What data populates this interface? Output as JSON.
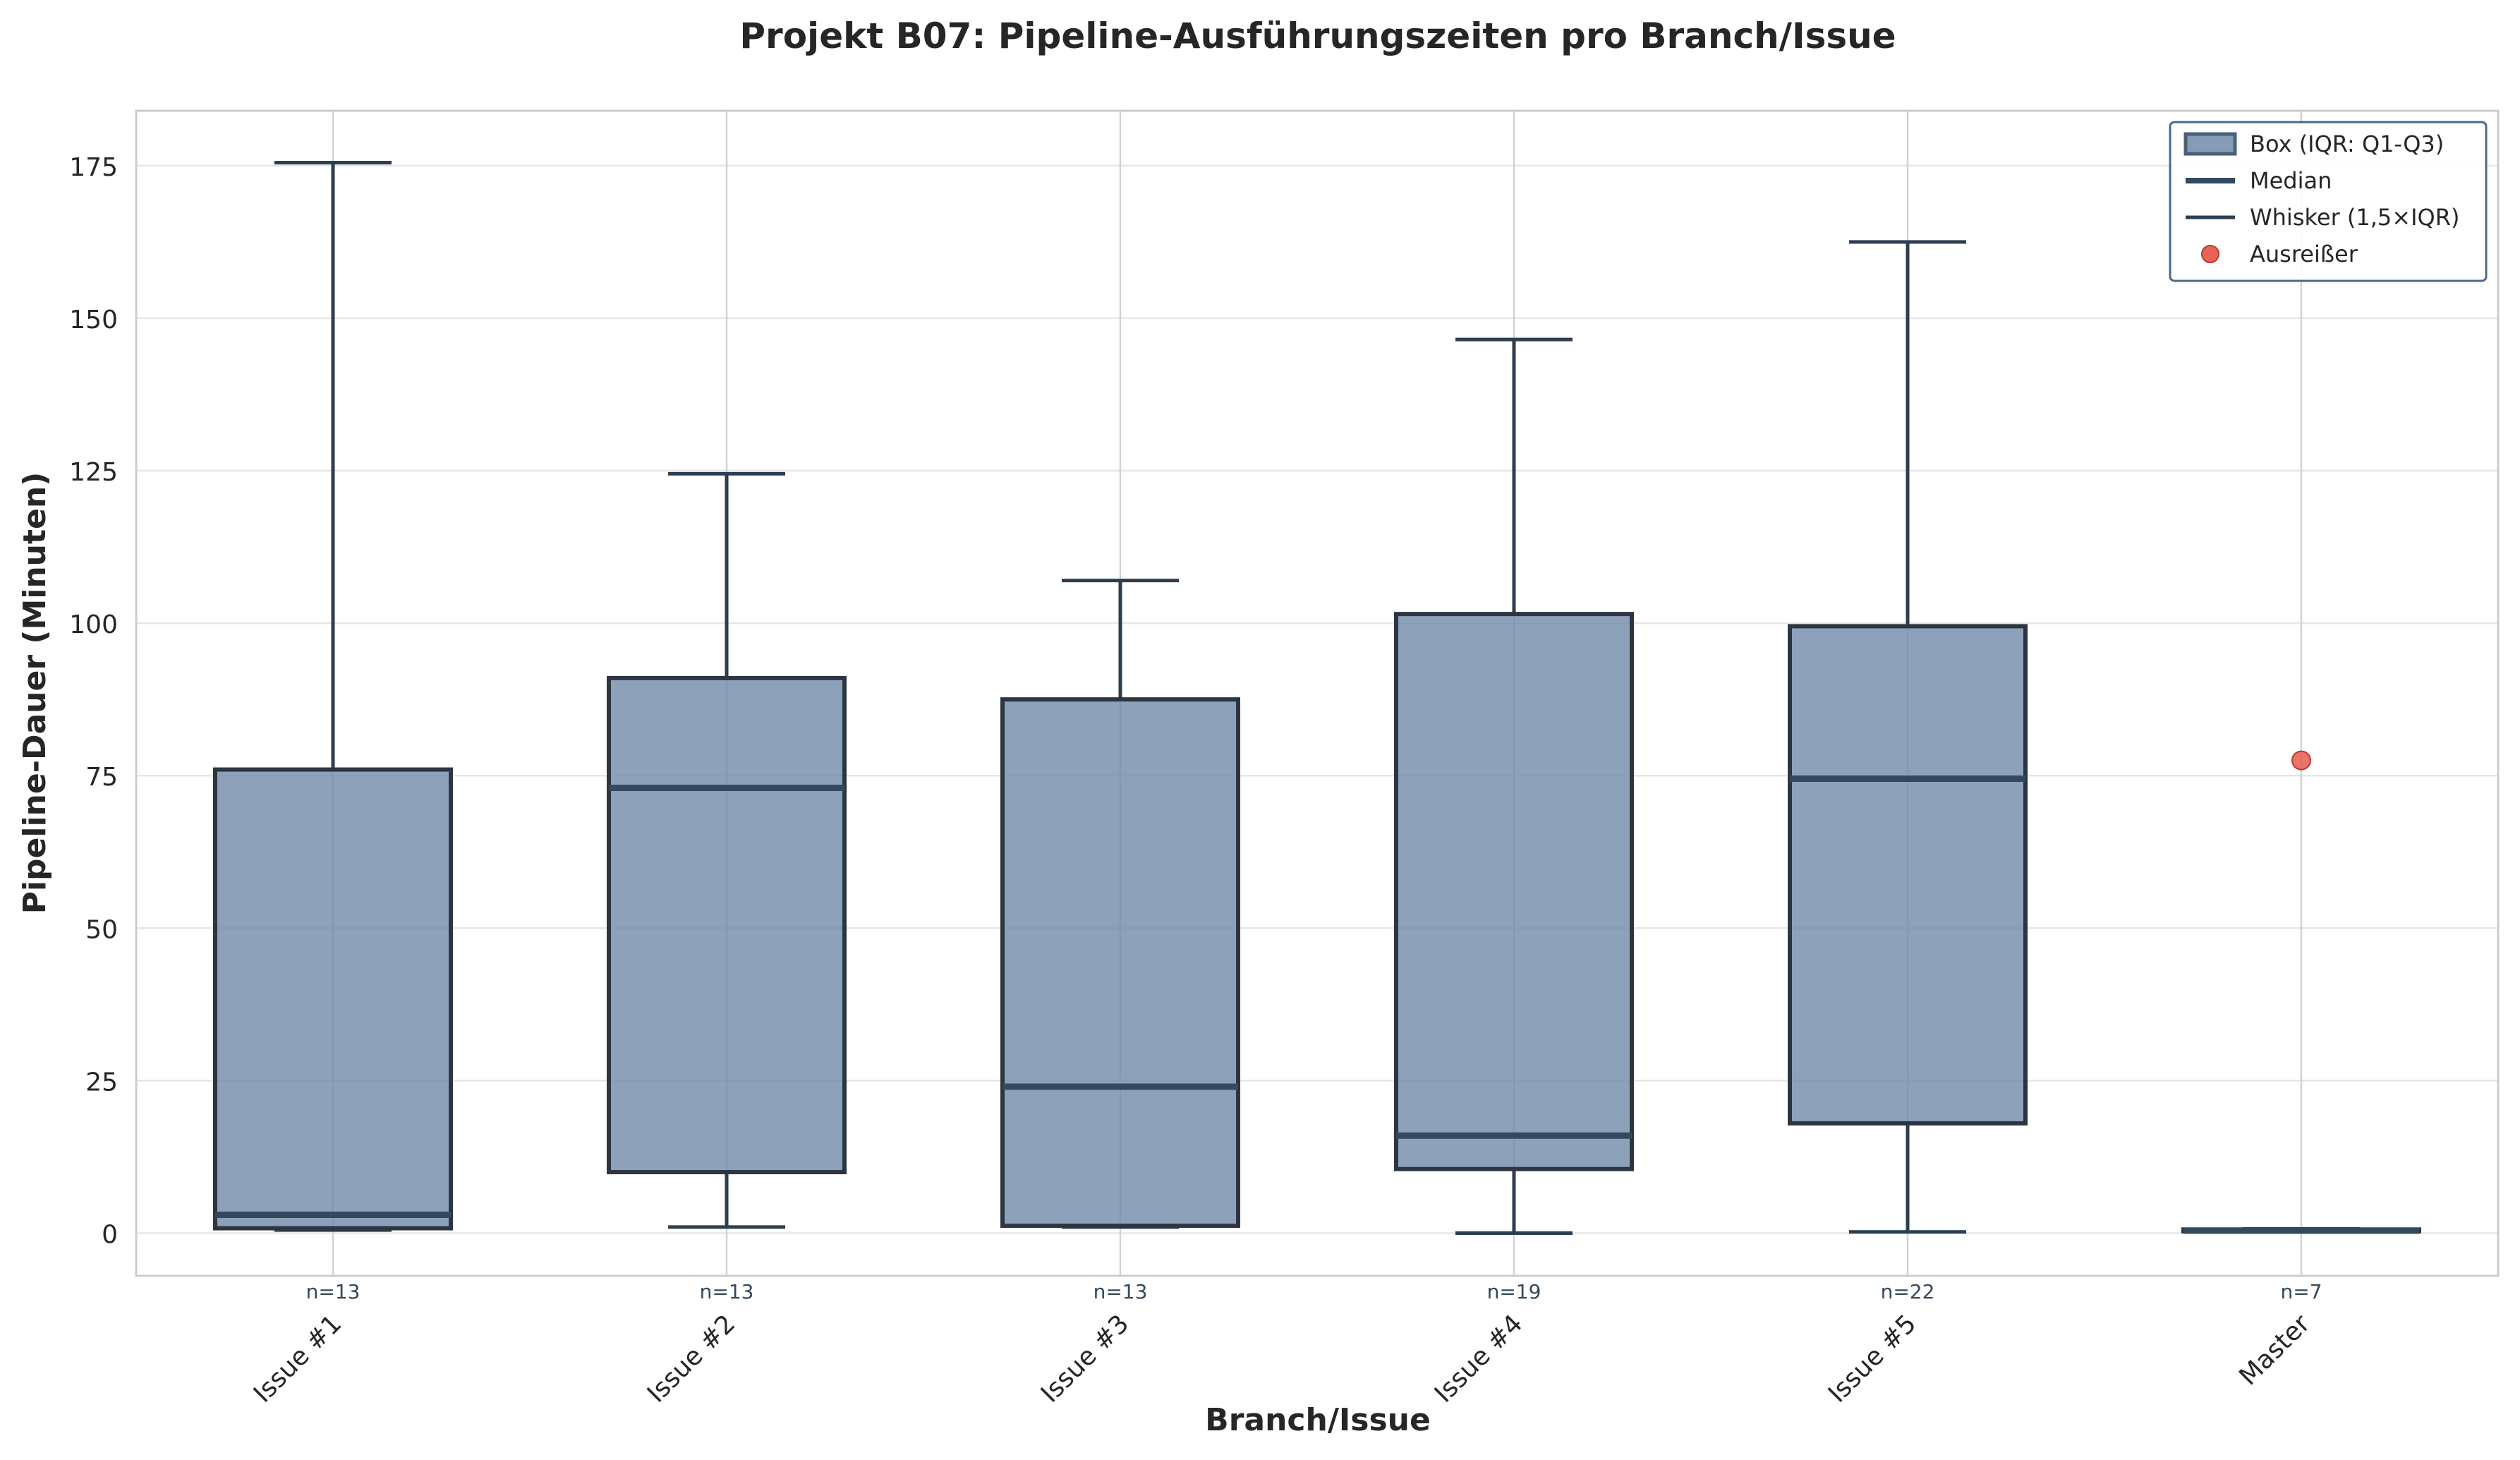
{
  "chart_data": {
    "type": "box",
    "title": "Projekt B07: Pipeline-Ausführungszeiten pro Branch/Issue",
    "xlabel": "Branch/Issue",
    "ylabel": "Pipeline-Dauer (Minuten)",
    "ylim": [
      -7,
      184
    ],
    "yticks": [
      0,
      25,
      50,
      75,
      100,
      125,
      150,
      175
    ],
    "grid": true,
    "legend_position": "top-right",
    "colors": {
      "box_fill": "#7189a9",
      "box_edge": "#2c3540",
      "median": "#34495e",
      "whisker": "#2c3e50",
      "outlier": "#e8645a",
      "n_label": "#34495e",
      "grid": "#e6e6e6",
      "legend_edge": "#4a6a8a"
    },
    "categories": [
      "Issue #1",
      "Issue #2",
      "Issue #3",
      "Issue #4",
      "Issue #5",
      "Master"
    ],
    "series": [
      {
        "category": "Issue #1",
        "whisker_low": 0.5,
        "q1": 0.8,
        "median": 3,
        "q3": 76,
        "whisker_high": 175.5,
        "n_label": "n=13",
        "outliers": []
      },
      {
        "category": "Issue #2",
        "whisker_low": 1,
        "q1": 10,
        "median": 73,
        "q3": 91,
        "whisker_high": 124.5,
        "n_label": "n=13",
        "outliers": []
      },
      {
        "category": "Issue #3",
        "whisker_low": 1,
        "q1": 1.2,
        "median": 24,
        "q3": 87.5,
        "whisker_high": 107,
        "n_label": "n=13",
        "outliers": []
      },
      {
        "category": "Issue #4",
        "whisker_low": 0,
        "q1": 10.5,
        "median": 16,
        "q3": 101.5,
        "whisker_high": 146.5,
        "n_label": "n=19",
        "outliers": []
      },
      {
        "category": "Issue #5",
        "whisker_low": 0.2,
        "q1": 18,
        "median": 74.5,
        "q3": 99.5,
        "whisker_high": 162.5,
        "n_label": "n=22",
        "outliers": []
      },
      {
        "category": "Master",
        "whisker_low": 0.3,
        "q1": 0.3,
        "median": 0.4,
        "q3": 0.6,
        "whisker_high": 0.7,
        "n_label": "n=7",
        "outliers": [
          77.5
        ]
      }
    ],
    "legend": [
      {
        "label": "Box (IQR: Q1-Q3)",
        "kind": "box"
      },
      {
        "label": "Median",
        "kind": "median"
      },
      {
        "label": "Whisker (1,5×IQR)",
        "kind": "whisker"
      },
      {
        "label": "Ausreißer",
        "kind": "outlier"
      }
    ]
  }
}
